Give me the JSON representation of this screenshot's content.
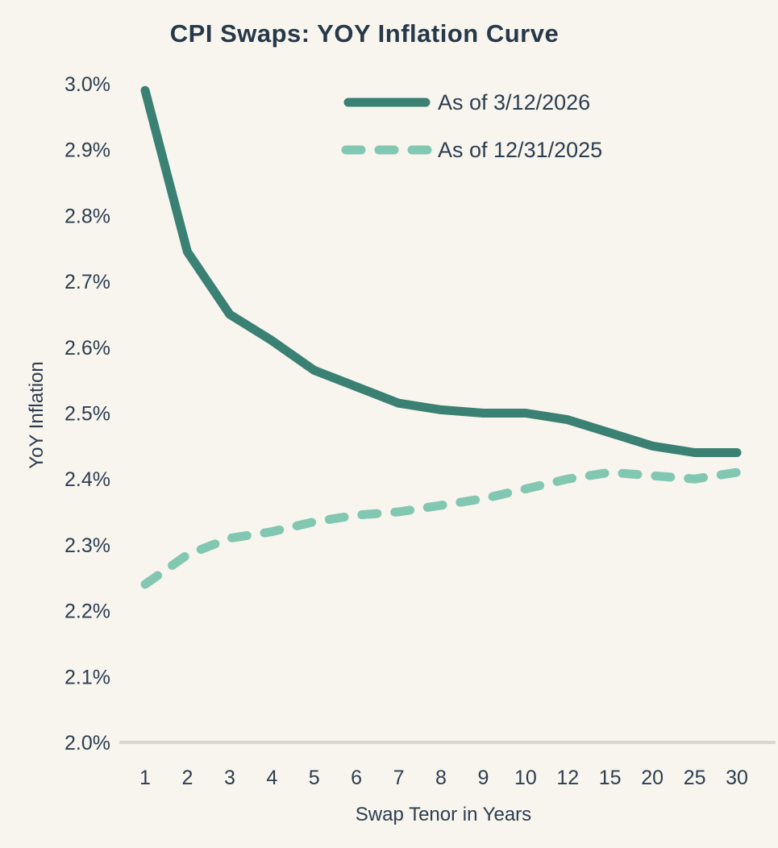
{
  "chart_data": {
    "type": "line",
    "title": "CPI Swaps: YOY Inflation Curve",
    "xlabel": "Swap Tenor in Years",
    "ylabel": "YoY Inflation",
    "categories": [
      "1",
      "2",
      "3",
      "4",
      "5",
      "6",
      "7",
      "8",
      "9",
      "10",
      "12",
      "15",
      "20",
      "25",
      "30"
    ],
    "series": [
      {
        "name": "As of 3/12/2026",
        "style": "solid",
        "color": "#3a8174",
        "values": [
          2.99,
          2.745,
          2.65,
          2.61,
          2.565,
          2.54,
          2.515,
          2.505,
          2.5,
          2.5,
          2.49,
          2.47,
          2.45,
          2.44,
          2.44
        ]
      },
      {
        "name": "As of 12/31/2025",
        "style": "dashed",
        "color": "#82c7b2",
        "values": [
          2.24,
          2.285,
          2.31,
          2.32,
          2.335,
          2.345,
          2.35,
          2.36,
          2.37,
          2.385,
          2.4,
          2.41,
          2.405,
          2.4,
          2.41
        ]
      }
    ],
    "ylim": [
      2.0,
      3.0
    ],
    "ytick_labels": [
      "2.0%",
      "2.1%",
      "2.2%",
      "2.3%",
      "2.4%",
      "2.5%",
      "2.6%",
      "2.7%",
      "2.8%",
      "2.9%",
      "3.0%"
    ],
    "grid": "bottom-baseline-only",
    "legend_position": "top-center"
  },
  "colors": {
    "background": "#f8f5ee",
    "text": "#2d3d50",
    "baseline": "#d9d7d1",
    "series_solid": "#3a8174",
    "series_dashed": "#82c7b2"
  }
}
